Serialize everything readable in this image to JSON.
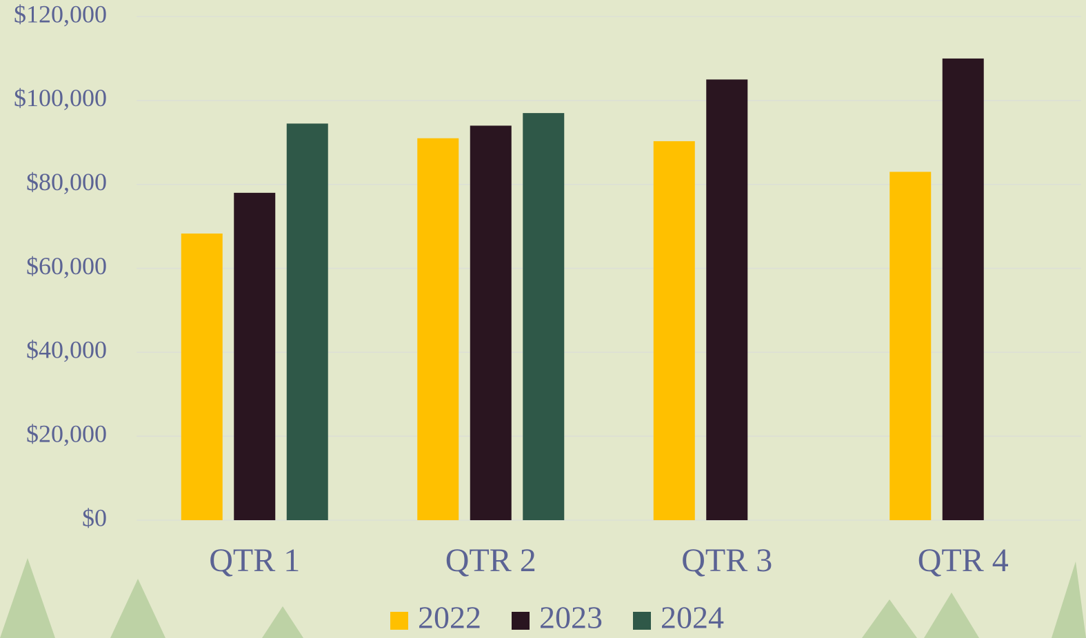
{
  "chart_data": {
    "type": "bar",
    "categories": [
      "QTR 1",
      "QTR 2",
      "QTR 3",
      "QTR 4"
    ],
    "series": [
      {
        "name": "2022",
        "color": "#ffc000",
        "values": [
          68300,
          91000,
          90300,
          83000
        ]
      },
      {
        "name": "2023",
        "color": "#2a1520",
        "values": [
          78000,
          94000,
          105000,
          110000
        ]
      },
      {
        "name": "2024",
        "color": "#2f5848",
        "values": [
          94500,
          97000,
          null,
          null
        ]
      }
    ],
    "ylim": [
      0,
      120000
    ],
    "yticks": [
      {
        "value": 0,
        "label": "$0"
      },
      {
        "value": 20000,
        "label": "$20,000"
      },
      {
        "value": 40000,
        "label": "$40,000"
      },
      {
        "value": 60000,
        "label": "$60,000"
      },
      {
        "value": 80000,
        "label": "$80,000"
      },
      {
        "value": 100000,
        "label": "$100,000"
      },
      {
        "value": 120000,
        "label": "$120,000"
      }
    ],
    "grid": true,
    "legend": "bottom"
  }
}
